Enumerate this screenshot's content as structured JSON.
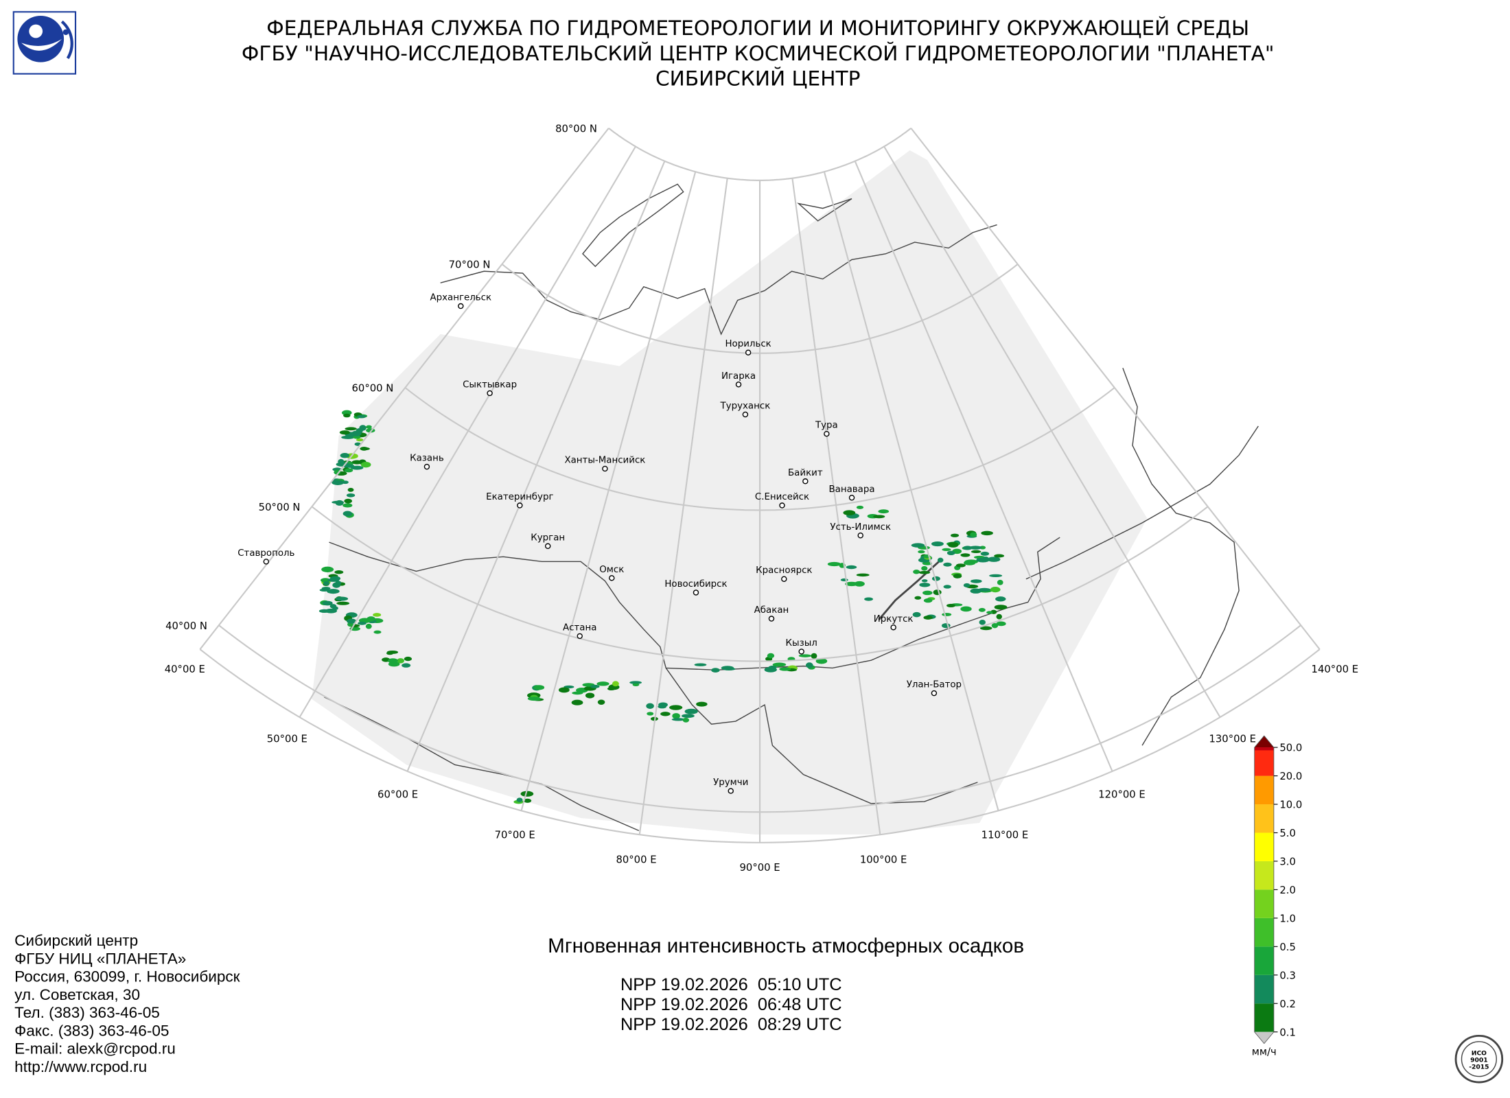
{
  "header": {
    "lines": [
      "ФЕДЕРАЛЬНАЯ СЛУЖБА ПО ГИДРОМЕТЕОРОЛОГИИ И МОНИТОРИНГУ ОКРУЖАЮЩЕЙ СРЕДЫ",
      "ФГБУ \"НАУЧНО-ИССЛЕДОВАТЕЛЬСКИЙ ЦЕНТР КОСМИЧЕСКОЙ ГИДРОМЕТЕОРОЛОГИИ \"ПЛАНЕТА\"",
      "СИБИРСКИЙ ЦЕНТР"
    ]
  },
  "map": {
    "parallels": [
      {
        "value": 80,
        "label": "80°00 N"
      },
      {
        "value": 70,
        "label": "70°00 N"
      },
      {
        "value": 60,
        "label": "60°00 N"
      },
      {
        "value": 50,
        "label": "50°00 N"
      },
      {
        "value": 40,
        "label": "40°00 N"
      }
    ],
    "meridians": [
      {
        "value": 40,
        "label": "40°00 E"
      },
      {
        "value": 50,
        "label": "50°00 E"
      },
      {
        "value": 60,
        "label": "60°00 E"
      },
      {
        "value": 70,
        "label": "70°00 E"
      },
      {
        "value": 80,
        "label": "80°00 E"
      },
      {
        "value": 90,
        "label": "90°00 E"
      },
      {
        "value": 100,
        "label": "100°00 E"
      },
      {
        "value": 110,
        "label": "110°00 E"
      },
      {
        "value": 120,
        "label": "120°00 E"
      },
      {
        "value": 130,
        "label": "130°00 E"
      },
      {
        "value": 140,
        "label": "140°00 E"
      }
    ],
    "cities": [
      "Архангельск",
      "Сыктывкар",
      "Казань",
      "Екатеринбург",
      "Ханты-Мансийск",
      "Курган",
      "Омск",
      "Астана",
      "Новосибирск",
      "Ставрополь",
      "Норильск",
      "Игарка",
      "Туруханск",
      "Тура",
      "Байкит",
      "Ванавара",
      "С.Енисейск",
      "Усть-Илимск",
      "Красноярск",
      "Абакан",
      "Иркутск",
      "Кызыл",
      "Улан-Батор",
      "Урумчи"
    ]
  },
  "legend": {
    "labels": [
      "0.1",
      "0.2",
      "0.3",
      "0.5",
      "1.0",
      "2.0",
      "3.0",
      "5.0",
      "10.0",
      "20.0",
      "50.0"
    ],
    "colors": [
      "#0b7a12",
      "#138a5c",
      "#19a63a",
      "#3fbf2a",
      "#74d21e",
      "#c6e81c",
      "#ffff00",
      "#ffc21a",
      "#ff9a00",
      "#ff2a10"
    ],
    "under_color": "#c8c8c8",
    "over_color": "#7a0000",
    "top_color": "#c00010",
    "unit": "мм/ч"
  },
  "product": {
    "title": "Мгновенная интенсивность атмосферных осадков",
    "passes": [
      "NPP 19.02.2026  05:10 UTC",
      "NPP 19.02.2026  06:48 UTC",
      "NPP 19.02.2026  08:29 UTC"
    ]
  },
  "contacts": [
    "Сибирский центр",
    "ФГБУ НИЦ «ПЛАНЕТА»",
    "Россия, 630099, г. Новосибирск",
    "ул. Советская, 30",
    "Тел. (383) 363-46-05",
    "Факс. (383) 363-46-05",
    "E-mail: alexk@rcpod.ru",
    "http://www.rcpod.ru"
  ],
  "stamp": [
    "ИСО",
    "9001",
    "-2015"
  ]
}
